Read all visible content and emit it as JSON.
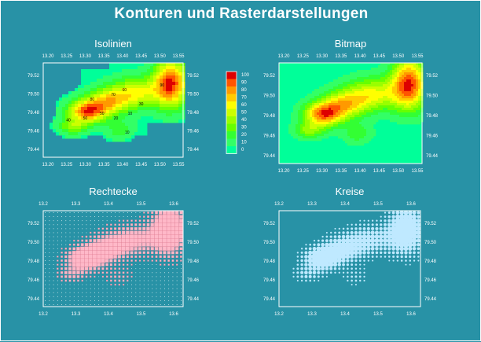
{
  "title": "Konturen und Rasterdarstellungen",
  "colors": {
    "background": "#2892a6",
    "frame": "#ffffff",
    "rect_fill": "#ffb8c8",
    "circle_fill": "#bfe9ff",
    "scale": [
      "#00ff99",
      "#33ff66",
      "#33ff33",
      "#66ff00",
      "#99ff00",
      "#ccff00",
      "#ffff00",
      "#ffcc00",
      "#ff9900",
      "#ff5500",
      "#dd0000"
    ]
  },
  "chart_data": [
    {
      "type": "contour",
      "title": "Isolinien",
      "xticks": [
        "13.20",
        "13.25",
        "13.30",
        "13.35",
        "13.40",
        "13.45",
        "13.50",
        "13.55"
      ],
      "yticks": [
        "79.52",
        "79.50",
        "79.48",
        "79.46",
        "79.44"
      ],
      "xlim": [
        13.2,
        13.58
      ],
      "ylim": [
        79.43,
        79.53
      ],
      "contour_labels": [
        "0",
        "10",
        "20",
        "30",
        "40",
        "50",
        "60",
        "70",
        "80",
        "90",
        "100"
      ]
    },
    {
      "type": "heatmap",
      "title": "Bitmap",
      "xticks": [
        "13.20",
        "13.25",
        "13.30",
        "13.35",
        "13.40",
        "13.45",
        "13.50",
        "13.55"
      ],
      "yticks": [
        "79.52",
        "79.50",
        "79.48",
        "79.46",
        "79.44"
      ],
      "xlim": [
        13.2,
        13.58
      ],
      "ylim": [
        79.43,
        79.53
      ]
    },
    {
      "type": "scatter",
      "marker": "rectangle",
      "title": "Rechtecke",
      "xticks": [
        "13.2",
        "13.3",
        "13.4",
        "13.5",
        "13.6"
      ],
      "yticks": [
        "79.52",
        "79.50",
        "79.48",
        "79.46",
        "79.44"
      ],
      "xlim": [
        13.2,
        13.6
      ],
      "ylim": [
        79.43,
        79.53
      ]
    },
    {
      "type": "scatter",
      "marker": "circle",
      "title": "Kreise",
      "xticks": [
        "13.2",
        "13.3",
        "13.4",
        "13.5",
        "13.6"
      ],
      "yticks": [
        "79.52",
        "79.50",
        "79.48",
        "79.46",
        "79.44"
      ],
      "xlim": [
        13.2,
        13.6
      ],
      "ylim": [
        79.43,
        79.53
      ]
    }
  ],
  "colorbar": {
    "labels": [
      "100",
      "90",
      "80",
      "70",
      "60",
      "50",
      "40",
      "30",
      "20",
      "10",
      "0"
    ],
    "range": [
      0,
      100
    ]
  }
}
